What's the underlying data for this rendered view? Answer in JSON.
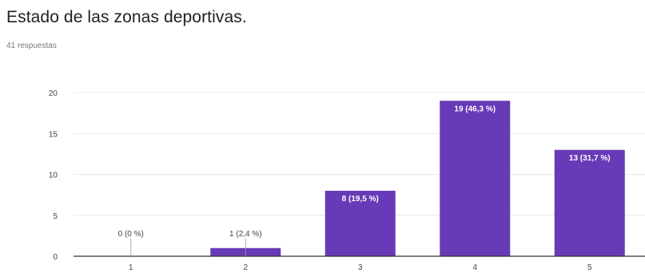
{
  "header": {
    "title": "Estado de las zonas deportivas.",
    "responses": "41 respuestas"
  },
  "colors": {
    "bar": "#673ab7",
    "grid": "#e8e8e8",
    "axis": "#333333",
    "tick_text": "#444444",
    "label_inside": "#ffffff",
    "label_outside": "#444444"
  },
  "chart_data": {
    "type": "bar",
    "categories": [
      "1",
      "2",
      "3",
      "4",
      "5"
    ],
    "values": [
      0,
      1,
      8,
      19,
      13
    ],
    "data_labels": [
      "0 (0 %)",
      "1 (2,4 %)",
      "8 (19,5 %)",
      "19 (46,3 %)",
      "13 (31,7 %)"
    ],
    "ylim": [
      0,
      20
    ],
    "yticks": [
      "0",
      "5",
      "10",
      "15",
      "20"
    ],
    "grid": true,
    "legend": "none",
    "title": "",
    "xlabel": "",
    "ylabel": ""
  }
}
